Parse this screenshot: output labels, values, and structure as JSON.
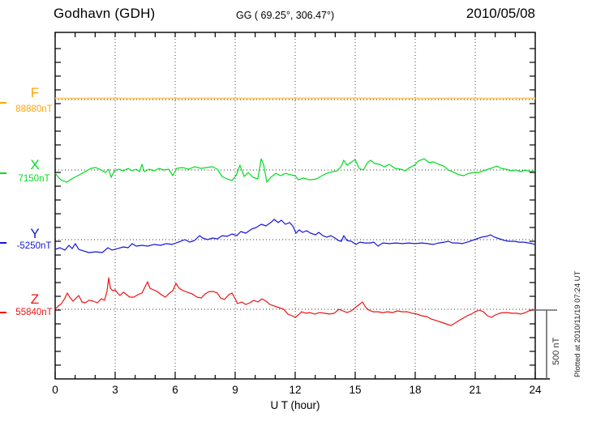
{
  "header": {
    "station": "Godhavn (GDH)",
    "coordinates": "GG ( 69.25°, 306.47°)",
    "date": "2010/05/08"
  },
  "xaxis": {
    "label": "U T (hour)"
  },
  "scale_bar": {
    "label": "500 nT",
    "nT": 500
  },
  "plot_note": "Plotted at 2010/11/19 07:24 UT",
  "chart_data": {
    "type": "line",
    "title": "Godhavn (GDH) magnetogram 2010/05/08",
    "xlabel": "U T (hour)",
    "x_range": [
      0,
      24
    ],
    "x_ticks": [
      0,
      3,
      6,
      9,
      12,
      15,
      18,
      21,
      24
    ],
    "y_minor_tick_nT": 100,
    "scale_bar_nT": 500,
    "grid": "dotted vertical lines every 3 h; dotted horizontal baseline per component",
    "legend_position": "left margin, one colored label per stacked trace",
    "series": [
      {
        "name": "F",
        "baseline_label": "88880nT",
        "baseline_nT": 88880,
        "color": "#FFA40D",
        "line_color": "#FFCD70",
        "x": [
          0,
          2,
          4,
          6,
          8,
          10,
          12,
          14,
          16,
          18,
          20,
          22,
          24
        ],
        "nT": [
          88888,
          88889,
          88888,
          88889,
          88889,
          88888,
          88889,
          88890,
          88889,
          88888,
          88889,
          88888,
          88889
        ]
      },
      {
        "name": "X",
        "baseline_label": "7150nT",
        "baseline_nT": 7150,
        "color": "#00DC1E",
        "line_color": "#00DC1E",
        "x": [
          0,
          0.28,
          0.57,
          0.89,
          1.22,
          1.5,
          1.78,
          2.03,
          2.31,
          2.51,
          2.68,
          2.8,
          2.96,
          3.16,
          3.41,
          3.65,
          3.85,
          4.05,
          4.22,
          4.34,
          4.46,
          4.7,
          4.95,
          5.19,
          5.43,
          5.68,
          5.88,
          6.08,
          6.37,
          6.69,
          6.97,
          7.3,
          7.58,
          7.86,
          8.11,
          8.35,
          8.59,
          8.84,
          9.04,
          9.24,
          9.45,
          9.65,
          9.89,
          10.13,
          10.3,
          10.42,
          10.58,
          10.78,
          11.03,
          11.27,
          11.51,
          11.76,
          12,
          12.16,
          12.41,
          12.73,
          13.05,
          13.34,
          13.58,
          13.86,
          14.11,
          14.31,
          14.43,
          14.59,
          14.76,
          15,
          15.2,
          15.41,
          15.61,
          15.77,
          15.97,
          16.22,
          16.46,
          16.7,
          16.99,
          17.27,
          17.51,
          17.72,
          17.96,
          18.16,
          18.45,
          18.69,
          18.93,
          19.18,
          19.42,
          19.66,
          19.95,
          20.19,
          20.43,
          20.68,
          20.92,
          21.16,
          21.41,
          21.65,
          21.89,
          22.09,
          22.3,
          22.54,
          22.78,
          23.03,
          23.27,
          23.51,
          23.76,
          24
        ],
        "nT": [
          7126,
          7079,
          7062,
          7091,
          7115,
          7138,
          7162,
          7168,
          7150,
          7132,
          7156,
          7097,
          7144,
          7156,
          7144,
          7162,
          7144,
          7156,
          7138,
          7191,
          7138,
          7156,
          7144,
          7162,
          7150,
          7156,
          7109,
          7162,
          7168,
          7156,
          7174,
          7162,
          7168,
          7174,
          7156,
          7103,
          7085,
          7074,
          7109,
          7185,
          7103,
          7132,
          7097,
          7085,
          7232,
          7191,
          7062,
          7097,
          7126,
          7109,
          7126,
          7115,
          7109,
          7079,
          7091,
          7079,
          7085,
          7109,
          7126,
          7138,
          7144,
          7179,
          7221,
          7185,
          7203,
          7226,
          7162,
          7150,
          7203,
          7221,
          7197,
          7191,
          7174,
          7191,
          7162,
          7156,
          7144,
          7168,
          7185,
          7215,
          7232,
          7203,
          7209,
          7191,
          7179,
          7150,
          7132,
          7115,
          7109,
          7126,
          7132,
          7132,
          7144,
          7156,
          7168,
          7179,
          7162,
          7156,
          7144,
          7150,
          7138,
          7150,
          7138,
          7144
        ]
      },
      {
        "name": "Y",
        "baseline_label": "-5250nT",
        "baseline_nT": -5250,
        "color": "#1616DD",
        "line_color": "#1616DD",
        "x": [
          0,
          0.24,
          0.49,
          0.69,
          0.85,
          1.01,
          1.18,
          1.42,
          1.7,
          2.03,
          2.35,
          2.64,
          2.84,
          3.12,
          3.41,
          3.65,
          3.85,
          4.05,
          4.34,
          4.62,
          4.95,
          5.27,
          5.55,
          5.84,
          6.16,
          6.49,
          6.73,
          6.97,
          7.22,
          7.38,
          7.62,
          7.86,
          8.11,
          8.35,
          8.59,
          8.84,
          9.08,
          9.28,
          9.53,
          9.81,
          10.05,
          10.3,
          10.54,
          10.78,
          10.95,
          11.15,
          11.31,
          11.51,
          11.72,
          11.88,
          12.04,
          12.2,
          12.37,
          12.57,
          12.77,
          13.01,
          13.18,
          13.38,
          13.58,
          13.78,
          13.99,
          14.15,
          14.31,
          14.43,
          14.59,
          14.8,
          15.04,
          15.24,
          15.49,
          15.73,
          15.93,
          16.14,
          16.38,
          16.7,
          17.03,
          17.35,
          17.68,
          18,
          18.32,
          18.61,
          18.89,
          19.18,
          19.46,
          19.66,
          19.86,
          20.11,
          20.35,
          20.6,
          20.84,
          21.08,
          21.32,
          21.57,
          21.77,
          21.97,
          22.22,
          22.46,
          22.7,
          22.95,
          23.19,
          23.43,
          23.68,
          23.84,
          24
        ],
        "nT": [
          -5321,
          -5309,
          -5326,
          -5291,
          -5315,
          -5279,
          -5321,
          -5332,
          -5344,
          -5338,
          -5344,
          -5309,
          -5326,
          -5315,
          -5303,
          -5309,
          -5279,
          -5297,
          -5291,
          -5297,
          -5285,
          -5291,
          -5279,
          -5285,
          -5268,
          -5250,
          -5268,
          -5256,
          -5221,
          -5238,
          -5250,
          -5238,
          -5244,
          -5221,
          -5226,
          -5209,
          -5221,
          -5191,
          -5203,
          -5174,
          -5162,
          -5138,
          -5150,
          -5126,
          -5103,
          -5126,
          -5109,
          -5138,
          -5126,
          -5150,
          -5203,
          -5179,
          -5197,
          -5185,
          -5203,
          -5215,
          -5197,
          -5221,
          -5232,
          -5221,
          -5238,
          -5256,
          -5262,
          -5221,
          -5256,
          -5262,
          -5285,
          -5268,
          -5274,
          -5274,
          -5268,
          -5297,
          -5274,
          -5279,
          -5274,
          -5279,
          -5274,
          -5279,
          -5274,
          -5279,
          -5285,
          -5274,
          -5268,
          -5262,
          -5274,
          -5274,
          -5279,
          -5268,
          -5256,
          -5244,
          -5232,
          -5226,
          -5215,
          -5232,
          -5244,
          -5256,
          -5262,
          -5262,
          -5268,
          -5268,
          -5274,
          -5279,
          -5285
        ]
      },
      {
        "name": "Z",
        "baseline_label": "55840nT",
        "baseline_nT": 55840,
        "color": "#EE1212",
        "line_color": "#EE1212",
        "x": [
          0,
          0.16,
          0.32,
          0.49,
          0.61,
          0.73,
          0.89,
          1.05,
          1.18,
          1.34,
          1.5,
          1.7,
          1.91,
          2.11,
          2.31,
          2.47,
          2.59,
          2.68,
          2.76,
          2.88,
          3,
          3.12,
          3.24,
          3.41,
          3.57,
          3.73,
          3.93,
          4.14,
          4.34,
          4.5,
          4.62,
          4.74,
          4.91,
          5.11,
          5.31,
          5.51,
          5.72,
          5.88,
          6.04,
          6.2,
          6.41,
          6.61,
          6.85,
          7.09,
          7.3,
          7.5,
          7.7,
          7.91,
          8.11,
          8.27,
          8.47,
          8.68,
          8.84,
          9,
          9.12,
          9.32,
          9.53,
          9.73,
          9.93,
          10.13,
          10.34,
          10.54,
          10.74,
          10.95,
          11.19,
          11.43,
          11.63,
          11.84,
          12,
          12.16,
          12.32,
          12.53,
          12.73,
          12.97,
          13.22,
          13.46,
          13.7,
          13.95,
          14.19,
          14.39,
          14.59,
          14.8,
          15,
          15.2,
          15.37,
          15.53,
          15.69,
          15.89,
          16.14,
          16.38,
          16.62,
          16.87,
          17.11,
          17.35,
          17.6,
          17.84,
          18.08,
          18.32,
          18.57,
          18.81,
          19.05,
          19.3,
          19.54,
          19.78,
          19.99,
          20.19,
          20.39,
          20.6,
          20.8,
          21,
          21.2,
          21.41,
          21.61,
          21.81,
          22.01,
          22.22,
          22.42,
          22.62,
          22.83,
          23.07,
          23.27,
          23.51,
          23.68,
          23.84,
          24
        ],
        "nT": [
          55840,
          55864,
          55881,
          55922,
          55958,
          55928,
          55899,
          55922,
          55940,
          55893,
          55887,
          55905,
          55899,
          55887,
          55916,
          55905,
          55969,
          56069,
          55993,
          55975,
          55981,
          55958,
          55940,
          55964,
          55946,
          55928,
          55928,
          55946,
          55958,
          56005,
          56040,
          55993,
          55981,
          55969,
          55946,
          55928,
          55958,
          55975,
          56028,
          55993,
          55975,
          55964,
          55952,
          55928,
          55922,
          55952,
          55969,
          55969,
          55958,
          55922,
          55911,
          55946,
          55958,
          55916,
          55881,
          55893,
          55875,
          55887,
          55905,
          55893,
          55916,
          55899,
          55875,
          55864,
          55852,
          55840,
          55805,
          55793,
          55781,
          55799,
          55822,
          55811,
          55816,
          55805,
          55816,
          55811,
          55805,
          55811,
          55840,
          55828,
          55816,
          55828,
          55852,
          55875,
          55893,
          55852,
          55834,
          55822,
          55822,
          55816,
          55822,
          55816,
          55828,
          55822,
          55822,
          55811,
          55805,
          55793,
          55787,
          55769,
          55758,
          55746,
          55734,
          55722,
          55740,
          55758,
          55775,
          55793,
          55805,
          55822,
          55834,
          55822,
          55793,
          55781,
          55799,
          55811,
          55816,
          55816,
          55811,
          55811,
          55805,
          55816,
          55828,
          55834,
          55840
        ]
      }
    ]
  }
}
